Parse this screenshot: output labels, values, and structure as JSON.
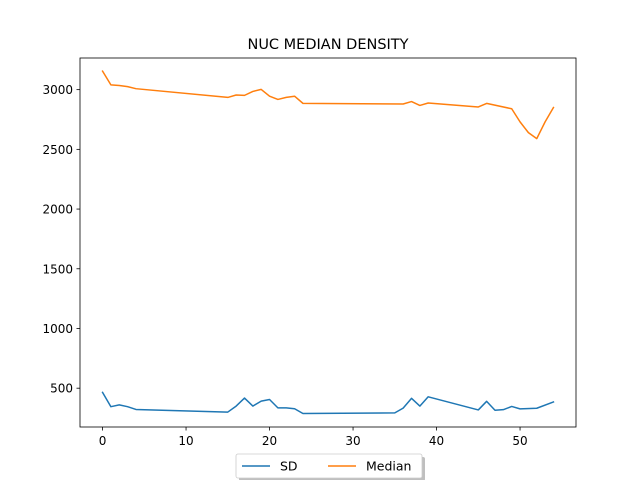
{
  "chart_data": {
    "type": "line",
    "title": "NUC MEDIAN DENSITY",
    "xlabel": "",
    "ylabel": "",
    "xlim": [
      -2.7,
      56.7
    ],
    "ylim": [
      175,
      3265
    ],
    "xticks": [
      0,
      10,
      20,
      30,
      40,
      50
    ],
    "yticks": [
      500,
      1000,
      1500,
      2000,
      2500,
      3000
    ],
    "grid": false,
    "legend_position": "bottom-center",
    "series": [
      {
        "name": "SD",
        "color": "#1f77b4",
        "points": [
          [
            0,
            465
          ],
          [
            1,
            345
          ],
          [
            2,
            360
          ],
          [
            3,
            345
          ],
          [
            4,
            322
          ],
          [
            15,
            300
          ],
          [
            16,
            350
          ],
          [
            17,
            417
          ],
          [
            18,
            350
          ],
          [
            19,
            392
          ],
          [
            20,
            405
          ],
          [
            21,
            335
          ],
          [
            22,
            335
          ],
          [
            23,
            328
          ],
          [
            24,
            288
          ],
          [
            35,
            293
          ],
          [
            36,
            333
          ],
          [
            37,
            415
          ],
          [
            38,
            350
          ],
          [
            39,
            428
          ],
          [
            45,
            318
          ],
          [
            46,
            390
          ],
          [
            47,
            315
          ],
          [
            48,
            320
          ],
          [
            49,
            347
          ],
          [
            50,
            327
          ],
          [
            52,
            332
          ],
          [
            54,
            385
          ]
        ]
      },
      {
        "name": "Median",
        "color": "#ff7f0e",
        "points": [
          [
            0,
            3155
          ],
          [
            1,
            3040
          ],
          [
            2,
            3035
          ],
          [
            3,
            3025
          ],
          [
            4,
            3008
          ],
          [
            15,
            2935
          ],
          [
            16,
            2955
          ],
          [
            17,
            2952
          ],
          [
            18,
            2985
          ],
          [
            19,
            3002
          ],
          [
            20,
            2945
          ],
          [
            21,
            2918
          ],
          [
            22,
            2935
          ],
          [
            23,
            2945
          ],
          [
            24,
            2885
          ],
          [
            36,
            2880
          ],
          [
            37,
            2900
          ],
          [
            38,
            2868
          ],
          [
            39,
            2888
          ],
          [
            45,
            2855
          ],
          [
            46,
            2885
          ],
          [
            49,
            2840
          ],
          [
            50,
            2730
          ],
          [
            51,
            2640
          ],
          [
            52,
            2590
          ],
          [
            53,
            2730
          ],
          [
            54,
            2850
          ]
        ]
      }
    ]
  }
}
